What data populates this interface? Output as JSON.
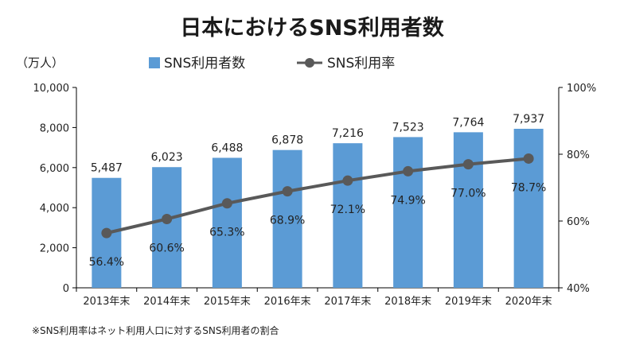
{
  "title": "日本におけるSNS利用者数",
  "y_unit": "（万人）",
  "note": "※SNS利用率はネット利用人口に対するSNS利用者の割合",
  "legend": {
    "bars": "SNS利用者数",
    "line": "SNS利用率"
  },
  "colors": {
    "bar": "#5b9bd5",
    "line": "#595959",
    "axis": "#000000"
  },
  "chart_data": {
    "type": "bar",
    "categories": [
      "2013年末",
      "2014年末",
      "2015年末",
      "2016年末",
      "2017年末",
      "2018年末",
      "2019年末",
      "2020年末"
    ],
    "series": [
      {
        "name": "SNS利用者数",
        "type": "bar",
        "axis": "left",
        "values": [
          5487,
          6023,
          6488,
          6878,
          7216,
          7523,
          7764,
          7937
        ],
        "labels": [
          "5,487",
          "6,023",
          "6,488",
          "6,878",
          "7,216",
          "7,523",
          "7,764",
          "7,937"
        ]
      },
      {
        "name": "SNS利用率",
        "type": "line",
        "axis": "right",
        "values": [
          56.4,
          60.6,
          65.3,
          68.9,
          72.1,
          74.9,
          77.0,
          78.7
        ],
        "labels": [
          "56.4%",
          "60.6%",
          "65.3%",
          "68.9%",
          "72.1%",
          "74.9%",
          "77.0%",
          "78.7%"
        ]
      }
    ],
    "y_left": {
      "min": 0,
      "max": 10000,
      "ticks": [
        "0",
        "2,000",
        "4,000",
        "6,000",
        "8,000",
        "10,000"
      ]
    },
    "y_right": {
      "min": 40,
      "max": 100,
      "ticks": [
        "40%",
        "60%",
        "80%",
        "100%"
      ]
    },
    "legend_position": "top",
    "grid": false
  }
}
